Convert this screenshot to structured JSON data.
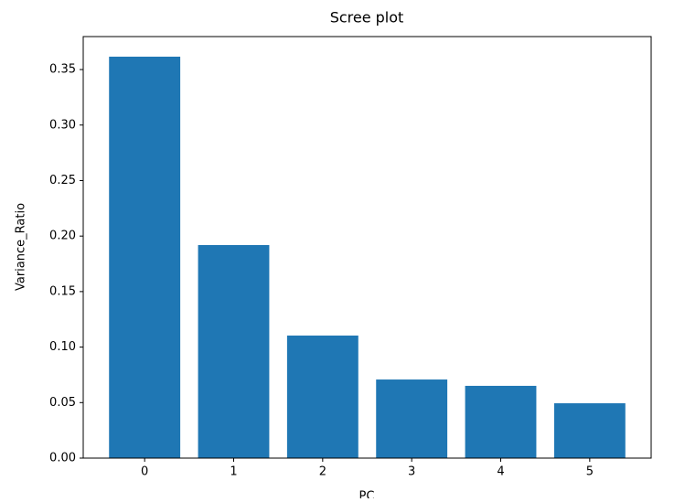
{
  "chart_data": {
    "type": "bar",
    "title": "Scree plot",
    "x_label": "PC",
    "y_label": "Variance_Ratio",
    "x": [
      0,
      1,
      2,
      3,
      4,
      5
    ],
    "values": [
      0.3616,
      0.1919,
      0.1104,
      0.0708,
      0.0651,
      0.0494
    ],
    "color": "#1f77b4",
    "bar_width": 0.8,
    "xlim": [
      -0.69,
      5.69
    ],
    "xticks": [
      0,
      1,
      2,
      3,
      4,
      5
    ],
    "ylim": [
      0,
      0.3797
    ],
    "yticks": [
      {
        "value": 0,
        "label": "0.00"
      },
      {
        "value": 0.05,
        "label": "0.05"
      },
      {
        "value": 0.1,
        "label": "0.10"
      },
      {
        "value": 0.15,
        "label": "0.15"
      },
      {
        "value": 0.2,
        "label": "0.20"
      },
      {
        "value": 0.25,
        "label": "0.25"
      },
      {
        "value": 0.3,
        "label": "0.30"
      },
      {
        "value": 0.35,
        "label": "0.35"
      }
    ],
    "grid": false
  }
}
